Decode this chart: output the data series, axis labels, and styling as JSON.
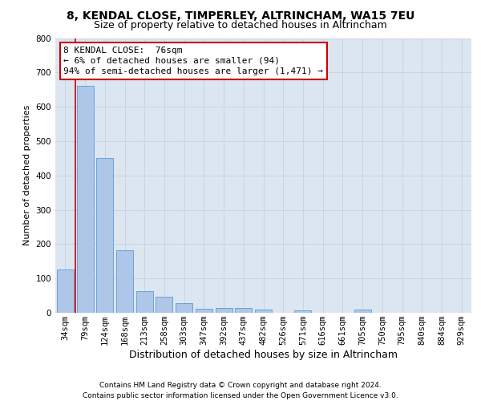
{
  "title": "8, KENDAL CLOSE, TIMPERLEY, ALTRINCHAM, WA15 7EU",
  "subtitle": "Size of property relative to detached houses in Altrincham",
  "xlabel": "Distribution of detached houses by size in Altrincham",
  "ylabel": "Number of detached properties",
  "categories": [
    "34sqm",
    "79sqm",
    "124sqm",
    "168sqm",
    "213sqm",
    "258sqm",
    "303sqm",
    "347sqm",
    "392sqm",
    "437sqm",
    "482sqm",
    "526sqm",
    "571sqm",
    "616sqm",
    "661sqm",
    "705sqm",
    "750sqm",
    "795sqm",
    "840sqm",
    "884sqm",
    "929sqm"
  ],
  "values": [
    127,
    660,
    450,
    183,
    62,
    47,
    29,
    12,
    15,
    14,
    9,
    0,
    8,
    0,
    0,
    9,
    0,
    0,
    0,
    0,
    0
  ],
  "bar_color": "#aec6e8",
  "bar_edge_color": "#5b9bd5",
  "annotation_text": "8 KENDAL CLOSE:  76sqm\n← 6% of detached houses are smaller (94)\n94% of semi-detached houses are larger (1,471) →",
  "annotation_box_color": "#ffffff",
  "annotation_box_edge_color": "#cc0000",
  "grid_color": "#c8d4e8",
  "background_color": "#dce6f1",
  "ylim": [
    0,
    800
  ],
  "yticks": [
    0,
    100,
    200,
    300,
    400,
    500,
    600,
    700,
    800
  ],
  "footer": "Contains HM Land Registry data © Crown copyright and database right 2024.\nContains public sector information licensed under the Open Government Licence v3.0.",
  "title_fontsize": 10,
  "subtitle_fontsize": 9,
  "xlabel_fontsize": 9,
  "ylabel_fontsize": 8,
  "tick_fontsize": 7.5,
  "annotation_fontsize": 8,
  "footer_fontsize": 6.5
}
